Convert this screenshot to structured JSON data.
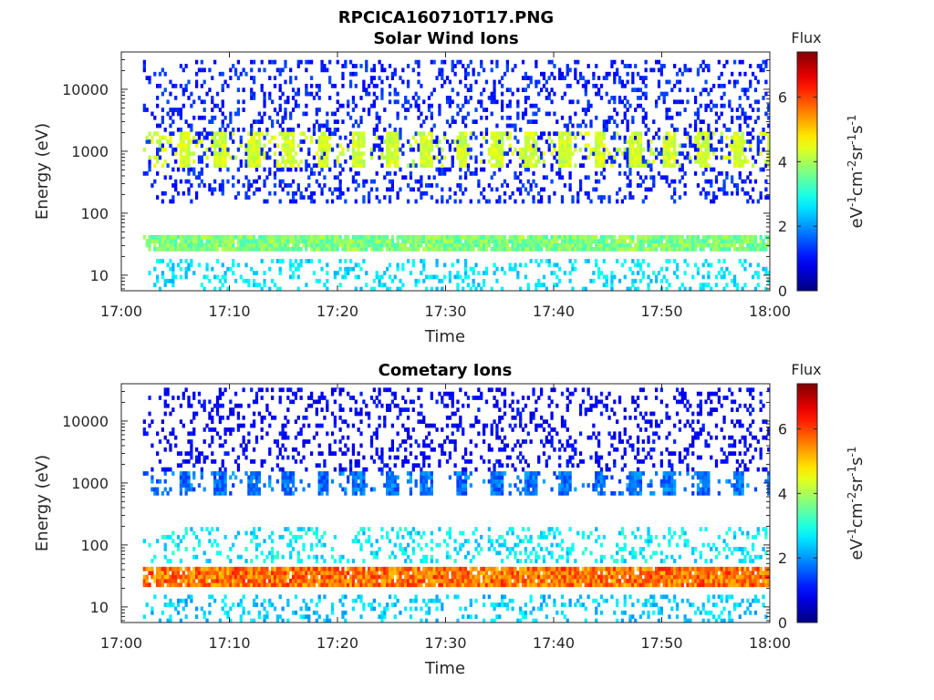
{
  "figure_title": "RPCICA160710T17.PNG",
  "chart_data": [
    {
      "type": "heatmap",
      "title": "Solar Wind Ions",
      "xlabel": "Time",
      "ylabel": "Energy (eV)",
      "x_ticks": [
        "17:00",
        "17:10",
        "17:20",
        "17:30",
        "17:40",
        "17:50",
        "18:00"
      ],
      "x_range": [
        "17:00",
        "18:00"
      ],
      "y_scale": "log",
      "y_range": [
        5.6,
        40000
      ],
      "y_ticks": [
        10,
        100,
        1000,
        10000
      ],
      "y_tick_labels": [
        "10",
        "100",
        "1000",
        "10000"
      ],
      "colorbar": {
        "title": "Flux",
        "label": "eV-1cm-2sr-1s-1",
        "range": [
          0,
          7.4
        ],
        "ticks": [
          0,
          2,
          4,
          6
        ],
        "colormap": "jet"
      },
      "data_start": "17:02",
      "bands": [
        {
          "name": "solar wind peak",
          "energy_range_eV": [
            550,
            2200
          ],
          "flux": [
            4,
            4.6
          ],
          "pattern": "pulsed every ~3.2 min from 17:04"
        },
        {
          "name": "low energy band",
          "energy_range_eV": [
            23,
            45
          ],
          "flux": [
            3.2,
            4.2
          ],
          "pattern": "continuous from 17:03"
        },
        {
          "name": "high energy background",
          "energy_range_eV": [
            150,
            30000
          ],
          "flux": [
            0.8,
            1.5
          ],
          "pattern": "sparse"
        },
        {
          "name": "lowest energies",
          "energy_range_eV": [
            6,
            18
          ],
          "flux": [
            2.2,
            3
          ],
          "pattern": "sparse"
        }
      ]
    },
    {
      "type": "heatmap",
      "title": "Cometary Ions",
      "xlabel": "Time",
      "ylabel": "Energy (eV)",
      "x_ticks": [
        "17:00",
        "17:10",
        "17:20",
        "17:30",
        "17:40",
        "17:50",
        "18:00"
      ],
      "x_range": [
        "17:00",
        "18:00"
      ],
      "y_scale": "log",
      "y_range": [
        5.6,
        40000
      ],
      "y_ticks": [
        10,
        100,
        1000,
        10000
      ],
      "y_tick_labels": [
        "10",
        "100",
        "1000",
        "10000"
      ],
      "colorbar": {
        "title": "Flux",
        "label": "eV-1cm-2sr-1s-1",
        "range": [
          0,
          7.4
        ],
        "ticks": [
          0,
          2,
          4,
          6
        ],
        "colormap": "jet"
      },
      "data_start": "17:02",
      "bands": [
        {
          "name": "cometary ion peak",
          "energy_range_eV": [
            20,
            42
          ],
          "flux": [
            5,
            6.3
          ],
          "pattern": "continuous from 17:03, peak 6"
        },
        {
          "name": "mid energy",
          "energy_range_eV": [
            50,
            200
          ],
          "flux": [
            2.2,
            3.2
          ],
          "pattern": "sparse"
        },
        {
          "name": "keV band",
          "energy_range_eV": [
            600,
            1600
          ],
          "flux": [
            1.3,
            2.2
          ],
          "pattern": "pulsed every ~3.2 min"
        },
        {
          "name": "high energy background",
          "energy_range_eV": [
            1600,
            35000
          ],
          "flux": [
            0.6,
            1.2
          ],
          "pattern": "sparse"
        },
        {
          "name": "lowest energies",
          "energy_range_eV": [
            6,
            16
          ],
          "flux": [
            2,
            2.8
          ],
          "pattern": "sparse"
        }
      ]
    }
  ]
}
